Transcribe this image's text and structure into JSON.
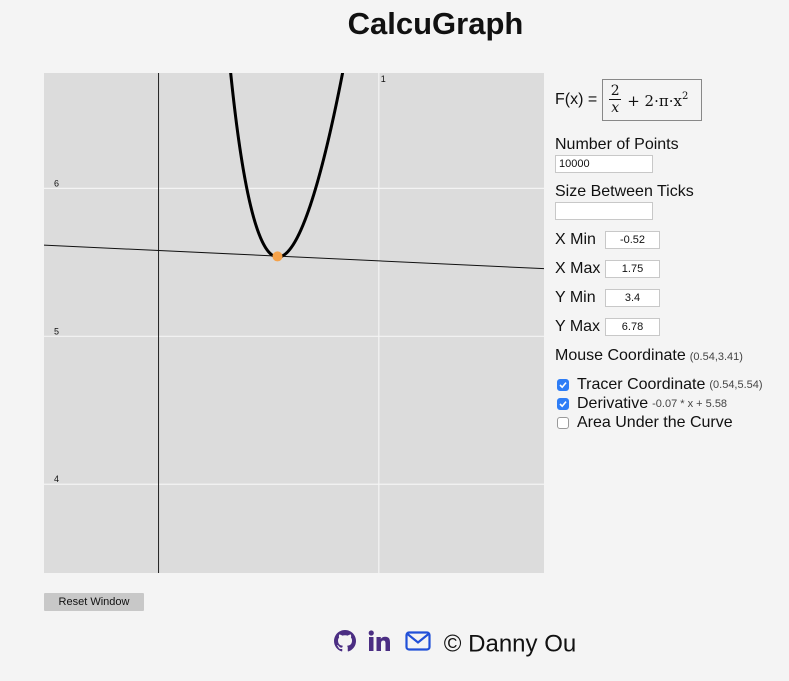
{
  "app": {
    "title": "CalcuGraph"
  },
  "graph": {
    "function_expression": "2/x + 2·π·x^2",
    "x_range": [
      -0.52,
      1.75
    ],
    "y_range": [
      3.4,
      6.78
    ],
    "tick_labels": {
      "x": [
        "1"
      ],
      "y": [
        "6",
        "5",
        "4"
      ]
    },
    "curve_color": "#000000",
    "tracer_color": "#f5a24a",
    "tracer_point": [
      0.54,
      5.54
    ],
    "tangent": {
      "slope": -0.07,
      "intercept": 5.58
    }
  },
  "controls": {
    "function_label": "F(x) =",
    "function_display": {
      "numerator": "2",
      "denominator": "x",
      "rest": "+ 2·π·x",
      "exponent": "2"
    },
    "num_points": {
      "label": "Number of Points",
      "value": "10000"
    },
    "tick_size": {
      "label": "Size Between Ticks",
      "value": ""
    },
    "x_min": {
      "label": "X Min",
      "value": "-0.52"
    },
    "x_max": {
      "label": "X Max",
      "value": "1.75"
    },
    "y_min": {
      "label": "Y Min",
      "value": "3.4"
    },
    "y_max": {
      "label": "Y Max",
      "value": "6.78"
    },
    "mouse_coordinate": {
      "label": "Mouse Coordinate",
      "value": "(0.54,3.41)"
    },
    "tracer": {
      "label": "Tracer Coordinate",
      "value": "(0.54,5.54)",
      "checked": true
    },
    "derivative": {
      "label": "Derivative",
      "value": "-0.07 * x + 5.58",
      "checked": true
    },
    "area": {
      "label": "Area Under the Curve",
      "checked": false
    },
    "reset_label": "Reset Window"
  },
  "footer": {
    "copyright": "© Danny Ou",
    "icons": [
      "github-icon",
      "linkedin-icon",
      "email-icon"
    ],
    "icon_colors": {
      "github": "#4b2e83",
      "linkedin": "#4b2e83",
      "email": "#2150d8"
    }
  }
}
